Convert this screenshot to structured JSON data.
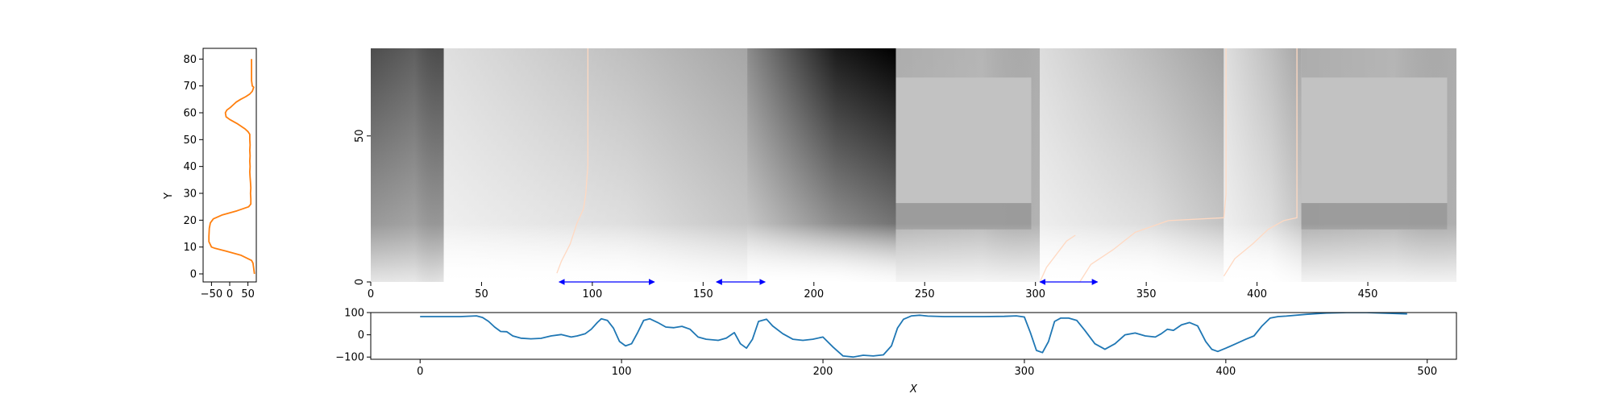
{
  "chart_data": [
    {
      "panel": "left",
      "type": "line",
      "ylabel": "Y",
      "xlabel": "",
      "xticks": [
        -50,
        0,
        50
      ],
      "yticks": [
        0,
        10,
        20,
        30,
        40,
        50,
        60,
        70,
        80
      ],
      "xlim": [
        -73,
        73
      ],
      "ylim": [
        -3,
        84
      ],
      "color": "#ff7f0e",
      "points": [
        [
          68,
          0
        ],
        [
          66,
          2
        ],
        [
          64,
          4
        ],
        [
          60,
          5
        ],
        [
          30,
          7
        ],
        [
          -10,
          8.5
        ],
        [
          -40,
          9.5
        ],
        [
          -50,
          10
        ],
        [
          -57,
          12
        ],
        [
          -57,
          14
        ],
        [
          -56,
          17
        ],
        [
          -53,
          19
        ],
        [
          -45,
          20.5
        ],
        [
          -20,
          22
        ],
        [
          20,
          23.5
        ],
        [
          52,
          25
        ],
        [
          58,
          26
        ],
        [
          58,
          28
        ],
        [
          57,
          30
        ],
        [
          58,
          32
        ],
        [
          57,
          34
        ],
        [
          56,
          36
        ],
        [
          55,
          38
        ],
        [
          56,
          40
        ],
        [
          55,
          42
        ],
        [
          56,
          44
        ],
        [
          55,
          46
        ],
        [
          56,
          48
        ],
        [
          55,
          50
        ],
        [
          55,
          52
        ],
        [
          50,
          53
        ],
        [
          42,
          54
        ],
        [
          20,
          56
        ],
        [
          0,
          57.5
        ],
        [
          -10,
          58.5
        ],
        [
          -12,
          60
        ],
        [
          -8,
          61
        ],
        [
          2,
          62
        ],
        [
          10,
          63
        ],
        [
          18,
          64
        ],
        [
          30,
          65
        ],
        [
          44,
          66
        ],
        [
          55,
          67
        ],
        [
          62,
          68
        ],
        [
          66,
          69.5
        ],
        [
          62,
          70
        ],
        [
          60,
          72
        ],
        [
          60,
          75
        ],
        [
          60,
          78
        ],
        [
          60,
          80
        ]
      ]
    },
    {
      "panel": "main",
      "type": "heatmap",
      "xlabel": "",
      "ylabel": "",
      "xticks": [
        0,
        50,
        100,
        150,
        200,
        250,
        300,
        350,
        400,
        450
      ],
      "yticks": [
        0,
        50
      ],
      "xlim": [
        0,
        490
      ],
      "ylim": [
        0,
        80
      ],
      "colormap": "greys",
      "segments": [
        {
          "x0": 0,
          "x1": 33,
          "top": 0.7,
          "bottom": 0.1,
          "flat": true
        },
        {
          "x0": 33,
          "x1": 170,
          "top": 0.28,
          "bottom": 0.0
        },
        {
          "x0": 170,
          "x1": 237,
          "top": 1.0,
          "bottom": 0.0
        },
        {
          "x0": 237,
          "x1": 302,
          "top": 0.32,
          "bottom": 0.28,
          "box": true
        },
        {
          "x0": 302,
          "x1": 385,
          "top": 0.3,
          "bottom": 0.0
        },
        {
          "x0": 385,
          "x1": 420,
          "top": 0.28,
          "bottom": 0.0
        },
        {
          "x0": 420,
          "x1": 490,
          "top": 0.32,
          "bottom": 0.3,
          "box": true
        }
      ],
      "traces": [
        {
          "color": "#ffd9c2",
          "points": [
            [
              98,
              80
            ],
            [
              98,
              60
            ],
            [
              98,
              40
            ],
            [
              97,
              30
            ],
            [
              96,
              25
            ],
            [
              93,
              20
            ],
            [
              90,
              13
            ],
            [
              86,
              7
            ],
            [
              84,
              3
            ]
          ]
        },
        {
          "color": "#ffd9c2",
          "points": [
            [
              302,
              0
            ],
            [
              305,
              5
            ],
            [
              310,
              10
            ],
            [
              314,
              14
            ],
            [
              318,
              16
            ]
          ]
        },
        {
          "color": "#ffd9c2",
          "points": [
            [
              320,
              0
            ],
            [
              325,
              6
            ],
            [
              335,
              11
            ],
            [
              345,
              17
            ],
            [
              360,
              21
            ],
            [
              385,
              22
            ],
            [
              386,
              30
            ],
            [
              386,
              50
            ],
            [
              386,
              72
            ],
            [
              386,
              80
            ]
          ]
        },
        {
          "color": "#ffd9c2",
          "points": [
            [
              385,
              2
            ],
            [
              390,
              8
            ],
            [
              398,
              13
            ],
            [
              405,
              18
            ],
            [
              412,
              21
            ],
            [
              418,
              22
            ],
            [
              418,
              40
            ],
            [
              418,
              60
            ],
            [
              418,
              80
            ]
          ]
        }
      ],
      "arrows": [
        {
          "x0": 85,
          "x1": 128,
          "y": 0,
          "color": "#0000ff"
        },
        {
          "x0": 156,
          "x1": 178,
          "y": 0,
          "color": "#0000ff"
        },
        {
          "x0": 302,
          "x1": 328,
          "y": 0,
          "color": "#0000ff"
        }
      ]
    },
    {
      "panel": "bottom",
      "type": "line",
      "xlabel": "X",
      "ylabel": "",
      "xticks": [
        0,
        100,
        200,
        300,
        400,
        500
      ],
      "yticks": [
        -100,
        0,
        100
      ],
      "xlim": [
        -24.5,
        514.5
      ],
      "ylim": [
        -110,
        100
      ],
      "color": "#1f77b4",
      "points": [
        [
          0,
          82
        ],
        [
          10,
          82
        ],
        [
          20,
          82
        ],
        [
          28,
          85
        ],
        [
          31,
          78
        ],
        [
          34,
          60
        ],
        [
          37,
          35
        ],
        [
          40,
          15
        ],
        [
          43,
          14
        ],
        [
          46,
          -5
        ],
        [
          50,
          -15
        ],
        [
          55,
          -18
        ],
        [
          60,
          -16
        ],
        [
          65,
          -5
        ],
        [
          70,
          1
        ],
        [
          75,
          -10
        ],
        [
          78,
          -5
        ],
        [
          82,
          5
        ],
        [
          85,
          25
        ],
        [
          88,
          55
        ],
        [
          90,
          72
        ],
        [
          93,
          65
        ],
        [
          96,
          30
        ],
        [
          99,
          -30
        ],
        [
          102,
          -50
        ],
        [
          105,
          -40
        ],
        [
          108,
          10
        ],
        [
          111,
          65
        ],
        [
          114,
          72
        ],
        [
          118,
          55
        ],
        [
          122,
          35
        ],
        [
          126,
          32
        ],
        [
          130,
          38
        ],
        [
          134,
          25
        ],
        [
          138,
          -10
        ],
        [
          142,
          -20
        ],
        [
          148,
          -25
        ],
        [
          152,
          -15
        ],
        [
          156,
          10
        ],
        [
          159,
          -40
        ],
        [
          162,
          -60
        ],
        [
          165,
          -20
        ],
        [
          168,
          60
        ],
        [
          172,
          70
        ],
        [
          175,
          40
        ],
        [
          180,
          5
        ],
        [
          185,
          -20
        ],
        [
          190,
          -25
        ],
        [
          195,
          -20
        ],
        [
          200,
          -10
        ],
        [
          205,
          -55
        ],
        [
          210,
          -95
        ],
        [
          215,
          -100
        ],
        [
          220,
          -92
        ],
        [
          225,
          -95
        ],
        [
          230,
          -90
        ],
        [
          234,
          -50
        ],
        [
          237,
          30
        ],
        [
          240,
          70
        ],
        [
          244,
          85
        ],
        [
          248,
          88
        ],
        [
          252,
          84
        ],
        [
          260,
          82
        ],
        [
          270,
          82
        ],
        [
          280,
          82
        ],
        [
          290,
          83
        ],
        [
          296,
          85
        ],
        [
          300,
          80
        ],
        [
          303,
          10
        ],
        [
          306,
          -70
        ],
        [
          309,
          -80
        ],
        [
          312,
          -30
        ],
        [
          315,
          60
        ],
        [
          318,
          75
        ],
        [
          322,
          75
        ],
        [
          326,
          65
        ],
        [
          330,
          20
        ],
        [
          335,
          -40
        ],
        [
          340,
          -65
        ],
        [
          345,
          -40
        ],
        [
          350,
          0
        ],
        [
          355,
          8
        ],
        [
          360,
          -5
        ],
        [
          365,
          -10
        ],
        [
          368,
          5
        ],
        [
          371,
          25
        ],
        [
          374,
          20
        ],
        [
          378,
          45
        ],
        [
          382,
          55
        ],
        [
          386,
          40
        ],
        [
          390,
          -30
        ],
        [
          393,
          -65
        ],
        [
          396,
          -75
        ],
        [
          400,
          -60
        ],
        [
          405,
          -40
        ],
        [
          410,
          -20
        ],
        [
          414,
          -5
        ],
        [
          418,
          40
        ],
        [
          422,
          75
        ],
        [
          426,
          82
        ],
        [
          430,
          84
        ],
        [
          440,
          92
        ],
        [
          450,
          98
        ],
        [
          460,
          100
        ],
        [
          470,
          100
        ],
        [
          480,
          97
        ],
        [
          490,
          94
        ]
      ]
    }
  ]
}
